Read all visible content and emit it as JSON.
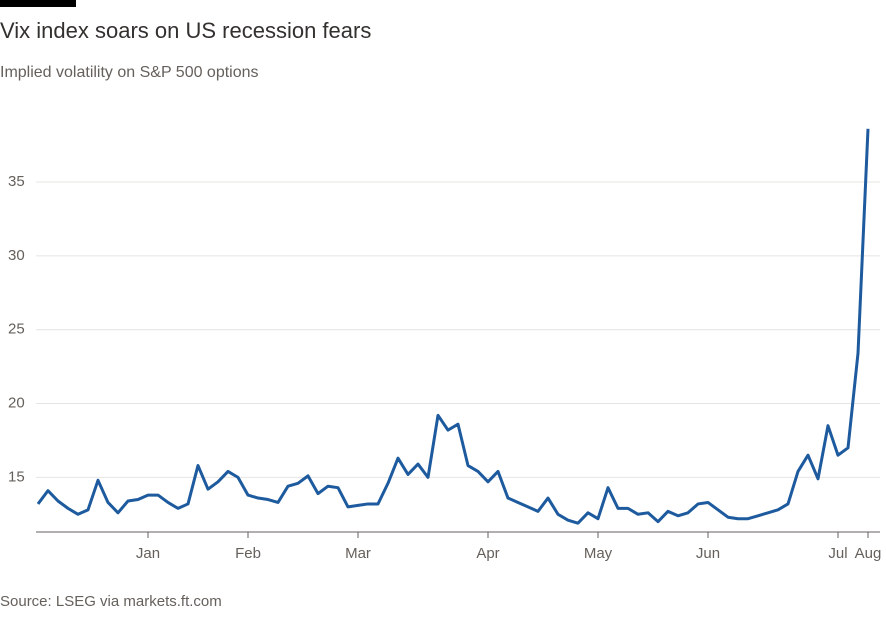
{
  "chart_data": {
    "type": "line",
    "title": "Vix index soars on US recession fears",
    "subtitle": "Implied volatility on S&P 500 options",
    "source": "Source: LSEG via markets.ft.com",
    "categories": [
      null,
      null,
      null,
      null,
      null,
      null,
      null,
      null,
      null,
      null,
      null,
      "Jan",
      null,
      null,
      null,
      null,
      null,
      null,
      null,
      null,
      null,
      "Feb",
      null,
      null,
      null,
      null,
      null,
      null,
      null,
      null,
      null,
      null,
      "Mar",
      null,
      null,
      null,
      null,
      null,
      null,
      null,
      null,
      null,
      null,
      null,
      null,
      "Apr",
      null,
      null,
      null,
      null,
      null,
      null,
      null,
      null,
      null,
      null,
      "May",
      null,
      null,
      null,
      null,
      null,
      null,
      null,
      null,
      null,
      null,
      "Jun",
      null,
      null,
      null,
      null,
      null,
      null,
      null,
      null,
      null,
      null,
      null,
      null,
      "Jul",
      null,
      null,
      "Aug"
    ],
    "series": [
      {
        "name": "Vix",
        "color": "#1d5a9e",
        "values": [
          13.2,
          14.1,
          13.4,
          12.9,
          12.5,
          12.8,
          14.8,
          13.3,
          12.6,
          13.4,
          13.5,
          13.8,
          13.8,
          13.3,
          12.9,
          13.2,
          15.8,
          14.2,
          14.7,
          15.4,
          15.0,
          13.8,
          13.6,
          13.5,
          13.3,
          14.4,
          14.6,
          15.1,
          13.9,
          14.4,
          14.3,
          13.0,
          13.1,
          13.2,
          13.2,
          14.6,
          16.3,
          15.2,
          15.9,
          15.0,
          19.2,
          18.2,
          18.6,
          15.8,
          15.4,
          14.7,
          15.4,
          13.6,
          13.3,
          13.0,
          12.7,
          13.6,
          12.5,
          12.1,
          11.9,
          12.6,
          12.2,
          14.3,
          12.9,
          12.9,
          12.5,
          12.6,
          12.0,
          12.7,
          12.4,
          12.6,
          13.2,
          13.3,
          12.8,
          12.3,
          12.2,
          12.2,
          12.4,
          12.6,
          12.8,
          13.2,
          15.4,
          16.5,
          14.9,
          18.5,
          16.5,
          17.0,
          23.4,
          38.6
        ]
      }
    ],
    "ylim": [
      11.3,
      39.2
    ],
    "yticks": [
      15,
      20,
      25,
      30,
      35
    ],
    "grid": true
  }
}
